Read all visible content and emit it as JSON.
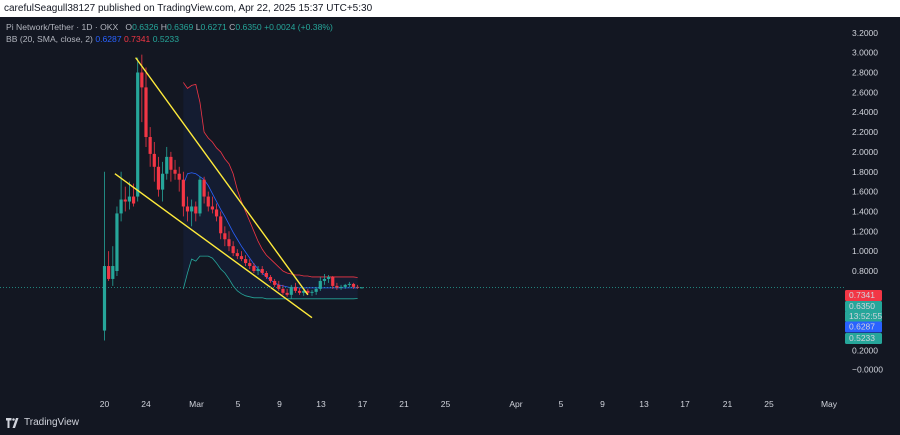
{
  "header": {
    "publisher_line": "carefulSeagull38127 published on TradingView.com, Apr 22, 2025 15:37 UTC+5:30"
  },
  "legend": {
    "symbol": "Pi Network/Tether · 1D · OKX",
    "o_label": "O",
    "o_value": "0.6326",
    "h_label": "H",
    "h_value": "0.6369",
    "l_label": "L",
    "l_value": "0.6271",
    "c_label": "C",
    "c_value": "0.6350",
    "change": "+0.0024 (+0.38%)",
    "bb_label": "BB (20, SMA, close, 2)",
    "bb_mid": "0.6287",
    "bb_upper": "0.7341",
    "bb_lower": "0.5233"
  },
  "colors": {
    "background": "#131722",
    "up": "#26a69a",
    "down": "#f23645",
    "bb_basis": "#2962ff",
    "bb_upper": "#f23645",
    "bb_lower": "#26a69a",
    "trendline": "#ffeb3b"
  },
  "price_axis": {
    "ticks": [
      "3.2000",
      "3.0000",
      "2.8000",
      "2.6000",
      "2.4000",
      "2.2000",
      "2.0000",
      "1.8000",
      "1.6000",
      "1.4000",
      "1.2000",
      "1.0000",
      "0.8000",
      "0.2000",
      "0.0000",
      "−0.0000"
    ]
  },
  "price_labels": {
    "upper": "0.7341",
    "close": "0.6350",
    "countdown": "13:52:55",
    "basis": "0.6287",
    "lower": "0.5233"
  },
  "time_axis": {
    "ticks": [
      "20",
      "24",
      "Mar",
      "5",
      "9",
      "13",
      "17",
      "21",
      "25",
      "Apr",
      "5",
      "9",
      "13",
      "17",
      "21",
      "25",
      "May"
    ]
  },
  "footer": {
    "brand": "TradingView"
  },
  "chart_data": {
    "type": "candlestick",
    "symbol": "Pi Network/Tether",
    "interval": "1D",
    "exchange": "OKX",
    "x_start": "Feb 20, 2025",
    "y_ticks": [
      3.2,
      3.0,
      2.8,
      2.6,
      2.4,
      2.2,
      2.0,
      1.8,
      1.6,
      1.4,
      1.2,
      1.0,
      0.8,
      0.2,
      0.0
    ],
    "candles": [
      {
        "o": 0.2,
        "h": 1.8,
        "l": 0.1,
        "c": 0.85
      },
      {
        "o": 0.85,
        "h": 1.0,
        "l": 0.7,
        "c": 0.72
      },
      {
        "o": 0.72,
        "h": 1.05,
        "l": 0.65,
        "c": 0.85
      },
      {
        "o": 0.8,
        "h": 1.45,
        "l": 0.75,
        "c": 1.38
      },
      {
        "o": 1.38,
        "h": 1.8,
        "l": 1.3,
        "c": 1.52
      },
      {
        "o": 1.52,
        "h": 1.65,
        "l": 1.4,
        "c": 1.5
      },
      {
        "o": 1.5,
        "h": 1.7,
        "l": 1.42,
        "c": 1.55
      },
      {
        "o": 1.55,
        "h": 1.68,
        "l": 1.45,
        "c": 1.48
      },
      {
        "o": 1.55,
        "h": 2.95,
        "l": 1.5,
        "c": 2.8
      },
      {
        "o": 2.8,
        "h": 2.98,
        "l": 2.3,
        "c": 2.65
      },
      {
        "o": 2.65,
        "h": 2.85,
        "l": 2.05,
        "c": 2.15
      },
      {
        "o": 2.15,
        "h": 2.25,
        "l": 1.85,
        "c": 1.98
      },
      {
        "o": 1.98,
        "h": 2.1,
        "l": 1.7,
        "c": 1.85
      },
      {
        "o": 1.85,
        "h": 1.95,
        "l": 1.55,
        "c": 1.62
      },
      {
        "o": 1.62,
        "h": 1.9,
        "l": 1.5,
        "c": 1.78
      },
      {
        "o": 1.78,
        "h": 2.05,
        "l": 1.72,
        "c": 1.95
      },
      {
        "o": 1.95,
        "h": 2.0,
        "l": 1.7,
        "c": 1.82
      },
      {
        "o": 1.82,
        "h": 1.92,
        "l": 1.72,
        "c": 1.78
      },
      {
        "o": 1.78,
        "h": 1.85,
        "l": 1.6,
        "c": 1.72
      },
      {
        "o": 1.72,
        "h": 1.8,
        "l": 1.35,
        "c": 1.45
      },
      {
        "o": 1.45,
        "h": 1.55,
        "l": 1.3,
        "c": 1.4
      },
      {
        "o": 1.4,
        "h": 1.52,
        "l": 1.25,
        "c": 1.45
      },
      {
        "o": 1.45,
        "h": 1.5,
        "l": 1.3,
        "c": 1.38
      },
      {
        "o": 1.38,
        "h": 1.75,
        "l": 1.35,
        "c": 1.72
      },
      {
        "o": 1.72,
        "h": 1.75,
        "l": 1.48,
        "c": 1.55
      },
      {
        "o": 1.55,
        "h": 1.6,
        "l": 1.4,
        "c": 1.45
      },
      {
        "o": 1.45,
        "h": 1.55,
        "l": 1.38,
        "c": 1.42
      },
      {
        "o": 1.42,
        "h": 1.48,
        "l": 1.3,
        "c": 1.35
      },
      {
        "o": 1.35,
        "h": 1.4,
        "l": 1.12,
        "c": 1.18
      },
      {
        "o": 1.18,
        "h": 1.25,
        "l": 1.05,
        "c": 1.12
      },
      {
        "o": 1.12,
        "h": 1.2,
        "l": 1.0,
        "c": 1.05
      },
      {
        "o": 1.05,
        "h": 1.1,
        "l": 0.95,
        "c": 0.98
      },
      {
        "o": 0.98,
        "h": 1.02,
        "l": 0.92,
        "c": 0.95
      },
      {
        "o": 0.95,
        "h": 1.0,
        "l": 0.9,
        "c": 0.92
      },
      {
        "o": 0.92,
        "h": 0.96,
        "l": 0.85,
        "c": 0.88
      },
      {
        "o": 0.88,
        "h": 0.92,
        "l": 0.82,
        "c": 0.85
      },
      {
        "o": 0.85,
        "h": 0.88,
        "l": 0.78,
        "c": 0.8
      },
      {
        "o": 0.8,
        "h": 0.85,
        "l": 0.76,
        "c": 0.82
      },
      {
        "o": 0.82,
        "h": 0.85,
        "l": 0.76,
        "c": 0.78
      },
      {
        "o": 0.78,
        "h": 0.8,
        "l": 0.72,
        "c": 0.74
      },
      {
        "o": 0.74,
        "h": 0.76,
        "l": 0.68,
        "c": 0.7
      },
      {
        "o": 0.7,
        "h": 0.72,
        "l": 0.64,
        "c": 0.66
      },
      {
        "o": 0.66,
        "h": 0.7,
        "l": 0.6,
        "c": 0.62
      },
      {
        "o": 0.62,
        "h": 0.66,
        "l": 0.56,
        "c": 0.58
      },
      {
        "o": 0.58,
        "h": 0.62,
        "l": 0.54,
        "c": 0.56
      },
      {
        "o": 0.56,
        "h": 0.66,
        "l": 0.52,
        "c": 0.64
      },
      {
        "o": 0.64,
        "h": 0.68,
        "l": 0.58,
        "c": 0.6
      },
      {
        "o": 0.6,
        "h": 0.63,
        "l": 0.56,
        "c": 0.58
      },
      {
        "o": 0.58,
        "h": 0.62,
        "l": 0.55,
        "c": 0.6
      },
      {
        "o": 0.6,
        "h": 0.62,
        "l": 0.56,
        "c": 0.58
      },
      {
        "o": 0.58,
        "h": 0.61,
        "l": 0.55,
        "c": 0.59
      },
      {
        "o": 0.59,
        "h": 0.64,
        "l": 0.56,
        "c": 0.62
      },
      {
        "o": 0.62,
        "h": 0.74,
        "l": 0.6,
        "c": 0.7
      },
      {
        "o": 0.7,
        "h": 0.77,
        "l": 0.66,
        "c": 0.72
      },
      {
        "o": 0.72,
        "h": 0.76,
        "l": 0.68,
        "c": 0.74
      },
      {
        "o": 0.74,
        "h": 0.75,
        "l": 0.62,
        "c": 0.65
      },
      {
        "o": 0.65,
        "h": 0.68,
        "l": 0.61,
        "c": 0.63
      },
      {
        "o": 0.63,
        "h": 0.66,
        "l": 0.61,
        "c": 0.64
      },
      {
        "o": 0.64,
        "h": 0.67,
        "l": 0.62,
        "c": 0.66
      },
      {
        "o": 0.66,
        "h": 0.69,
        "l": 0.64,
        "c": 0.67
      },
      {
        "o": 0.67,
        "h": 0.68,
        "l": 0.62,
        "c": 0.64
      },
      {
        "o": 0.64,
        "h": 0.66,
        "l": 0.62,
        "c": 0.6326
      },
      {
        "o": 0.6326,
        "h": 0.6369,
        "l": 0.6271,
        "c": 0.635
      }
    ],
    "bb_start_index": 19,
    "bb_basis": [
      1.67,
      1.78,
      1.79,
      1.78,
      1.75,
      1.72,
      1.66,
      1.58,
      1.5,
      1.42,
      1.35,
      1.27,
      1.19,
      1.12,
      1.05,
      0.99,
      0.93,
      0.87,
      0.82,
      0.78,
      0.74,
      0.71,
      0.68,
      0.66,
      0.65,
      0.64,
      0.63,
      0.63,
      0.63,
      0.63,
      0.63,
      0.63,
      0.63,
      0.63,
      0.63,
      0.63,
      0.63,
      0.63,
      0.63,
      0.63,
      0.63,
      0.63,
      0.6287
    ],
    "bb_upper": [
      2.7,
      2.64,
      2.67,
      2.68,
      2.5,
      2.2,
      2.14,
      2.1,
      2.04,
      2.0,
      1.93,
      1.88,
      1.78,
      1.62,
      1.5,
      1.4,
      1.3,
      1.2,
      1.1,
      1.02,
      0.96,
      0.92,
      0.88,
      0.84,
      0.8,
      0.78,
      0.77,
      0.76,
      0.76,
      0.75,
      0.75,
      0.74,
      0.74,
      0.74,
      0.74,
      0.74,
      0.74,
      0.74,
      0.74,
      0.74,
      0.74,
      0.74,
      0.7341
    ],
    "bb_lower": [
      0.62,
      0.78,
      0.92,
      0.9,
      0.95,
      0.95,
      0.95,
      0.93,
      0.88,
      0.82,
      0.78,
      0.72,
      0.65,
      0.6,
      0.57,
      0.55,
      0.54,
      0.53,
      0.53,
      0.53,
      0.52,
      0.52,
      0.52,
      0.52,
      0.52,
      0.52,
      0.52,
      0.52,
      0.52,
      0.52,
      0.52,
      0.52,
      0.52,
      0.52,
      0.52,
      0.52,
      0.52,
      0.52,
      0.52,
      0.52,
      0.52,
      0.52,
      0.5233
    ],
    "trendlines": [
      {
        "from": {
          "i": 7.5,
          "p": 2.95
        },
        "to": {
          "i": 49,
          "p": 0.56
        }
      },
      {
        "from": {
          "i": 2.5,
          "p": 1.78
        },
        "to": {
          "i": 50,
          "p": 0.33
        }
      }
    ]
  }
}
